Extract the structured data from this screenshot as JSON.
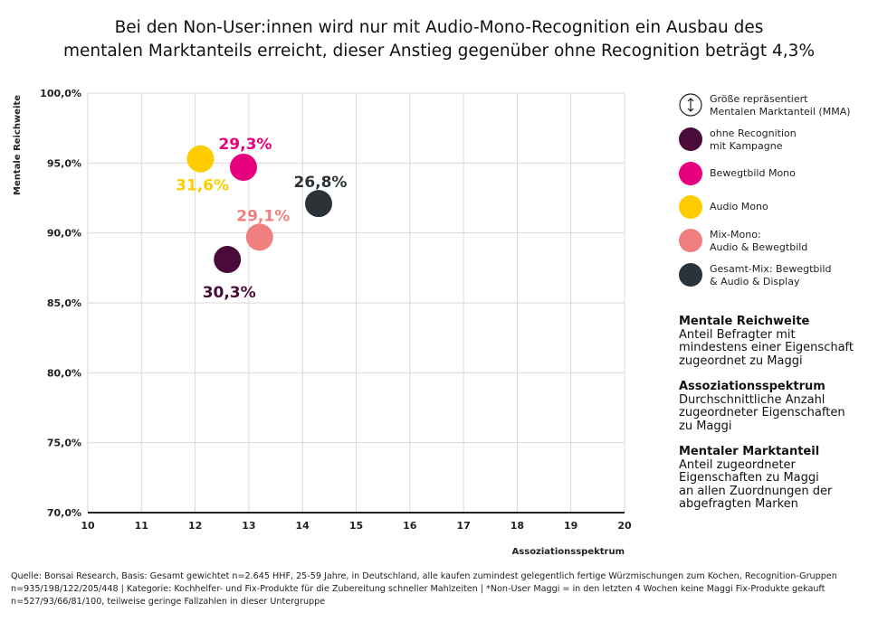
{
  "title_line1": "Bei den Non-User:innen wird nur mit Audio-Mono-Recognition ein Ausbau des",
  "title_line2": "mentalen Marktanteils erreicht, dieser Anstieg gegenüber ohne Recognition beträgt 4,3%",
  "chart_data": {
    "type": "scatter",
    "xlabel": "Assoziationsspektrum",
    "ylabel": "Mentale Reichweite",
    "xlim": [
      10,
      20
    ],
    "ylim": [
      70,
      100
    ],
    "x_ticks": [
      "10",
      "11",
      "12",
      "13",
      "14",
      "15",
      "16",
      "17",
      "18",
      "19",
      "20"
    ],
    "y_ticks": [
      "70,0%",
      "75,0%",
      "80,0%",
      "85,0%",
      "90,0%",
      "95,0%",
      "100,0%"
    ],
    "grid": true,
    "series": [
      {
        "name": "ohne Recognition mit Kampagne",
        "x": 12.6,
        "y": 88.1,
        "label": "30,3%",
        "color": "#4a0a3a"
      },
      {
        "name": "Bewegtbild Mono",
        "x": 12.9,
        "y": 94.7,
        "label": "29,3%",
        "color": "#e6007e"
      },
      {
        "name": "Audio Mono",
        "x": 12.1,
        "y": 95.3,
        "label": "31,6%",
        "color": "#ffcc00"
      },
      {
        "name": "Mix-Mono: Audio & Bewegtbild",
        "x": 13.2,
        "y": 89.7,
        "label": "29,1%",
        "color": "#f08080"
      },
      {
        "name": "Gesamt-Mix: Bewegtbild & Audio & Display",
        "x": 14.3,
        "y": 92.1,
        "label": "26,8%",
        "color": "#2c3338"
      }
    ]
  },
  "legend": {
    "size_note_line1": "Größe repräsentiert",
    "size_note_line2": "Mentalen Marktanteil (MMA)",
    "size_icon": "up-down-arrow-icon",
    "items": [
      {
        "line1": "ohne Recognition",
        "line2": "mit Kampagne",
        "color": "#4a0a3a"
      },
      {
        "line1": "Bewegtbild Mono",
        "line2": "",
        "color": "#e6007e"
      },
      {
        "line1": "Audio Mono",
        "line2": "",
        "color": "#ffcc00"
      },
      {
        "line1": "Mix-Mono:",
        "line2": "Audio & Bewegtbild",
        "color": "#f08080"
      },
      {
        "line1": "Gesamt-Mix: Bewegtbild",
        "line2": "& Audio & Display",
        "color": "#2c3338"
      }
    ]
  },
  "definitions": [
    {
      "heading": "Mentale Reichweite",
      "lines": [
        "Anteil Befragter mit",
        "mindestens einer Eigenschaft",
        "zugeordnet zu Maggi"
      ]
    },
    {
      "heading": "Assoziationsspektrum",
      "lines": [
        "Durchschnittliche Anzahl",
        "zugeordneter Eigenschaften",
        "zu Maggi"
      ]
    },
    {
      "heading": "Mentaler Marktanteil",
      "lines": [
        "Anteil zugeordneter",
        "Eigenschaften zu Maggi",
        "an allen Zuordnungen der",
        "abgefragten Marken"
      ]
    }
  ],
  "footnote": {
    "line1": "Quelle: Bonsai Research, Basis: Gesamt gewichtet n=2.645 HHF, 25-59 Jahre, in Deutschland, alle kaufen zumindest gelegentlich fertige Würzmischungen zum Kochen, Recognition-Gruppen",
    "line2": "n=935/198/122/205/448 | Kategorie: Kochhelfer- und Fix-Produkte für die Zubereitung schneller Mahlzeiten | *Non-User Maggi = in den letzten 4 Wochen keine Maggi Fix-Produkte gekauft",
    "line3": "n=527/93/66/81/100, teilweise geringe Fallzahlen in dieser Untergruppe"
  }
}
